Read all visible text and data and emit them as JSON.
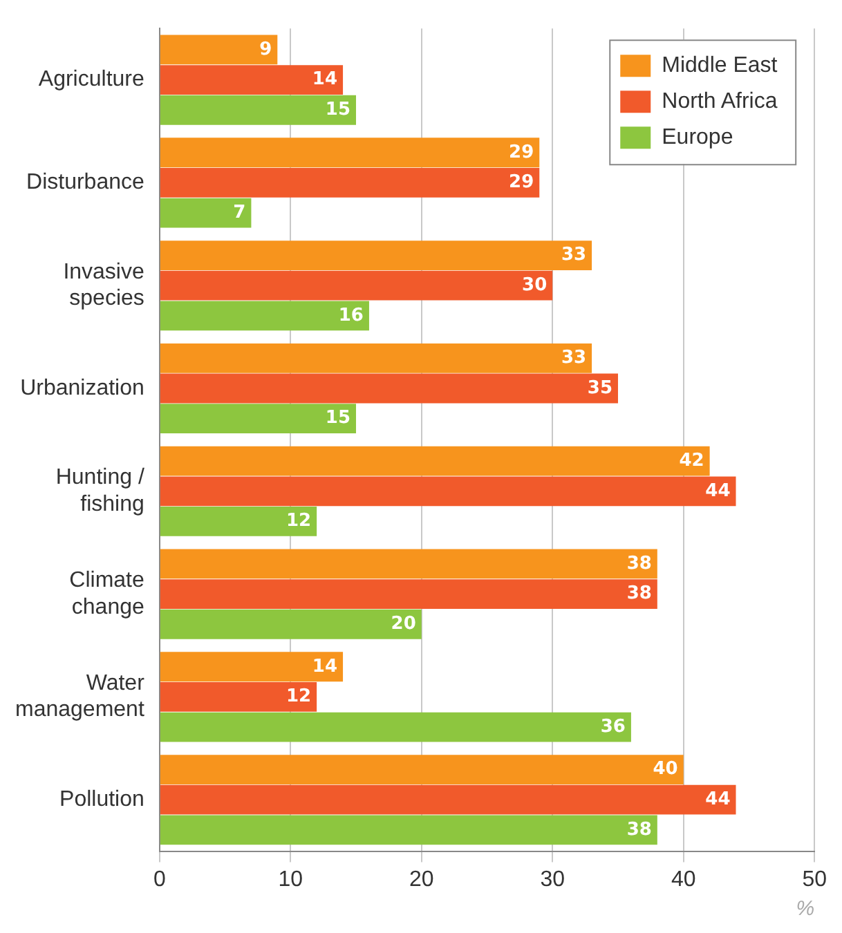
{
  "chart_data": {
    "type": "bar",
    "orientation": "horizontal",
    "xlabel": "%",
    "categories": [
      "Agriculture",
      "Disturbance",
      "Invasive species",
      "Urbanization",
      "Hunting / fishing",
      "Climate change",
      "Water management",
      "Pollution"
    ],
    "series": [
      {
        "name": "Middle East",
        "color": "#f7941d",
        "values": [
          9,
          29,
          33,
          33,
          42,
          38,
          14,
          40
        ]
      },
      {
        "name": "North Africa",
        "color": "#f15a2b",
        "values": [
          14,
          29,
          30,
          35,
          44,
          38,
          12,
          44
        ]
      },
      {
        "name": "Europe",
        "color": "#8dc63f",
        "values": [
          15,
          7,
          16,
          15,
          12,
          20,
          36,
          38
        ]
      }
    ],
    "xlim": [
      0,
      50
    ],
    "xticks": [
      0,
      10,
      20,
      30,
      40,
      50
    ],
    "grid": "x",
    "legend": "top right",
    "data_labels": true
  }
}
